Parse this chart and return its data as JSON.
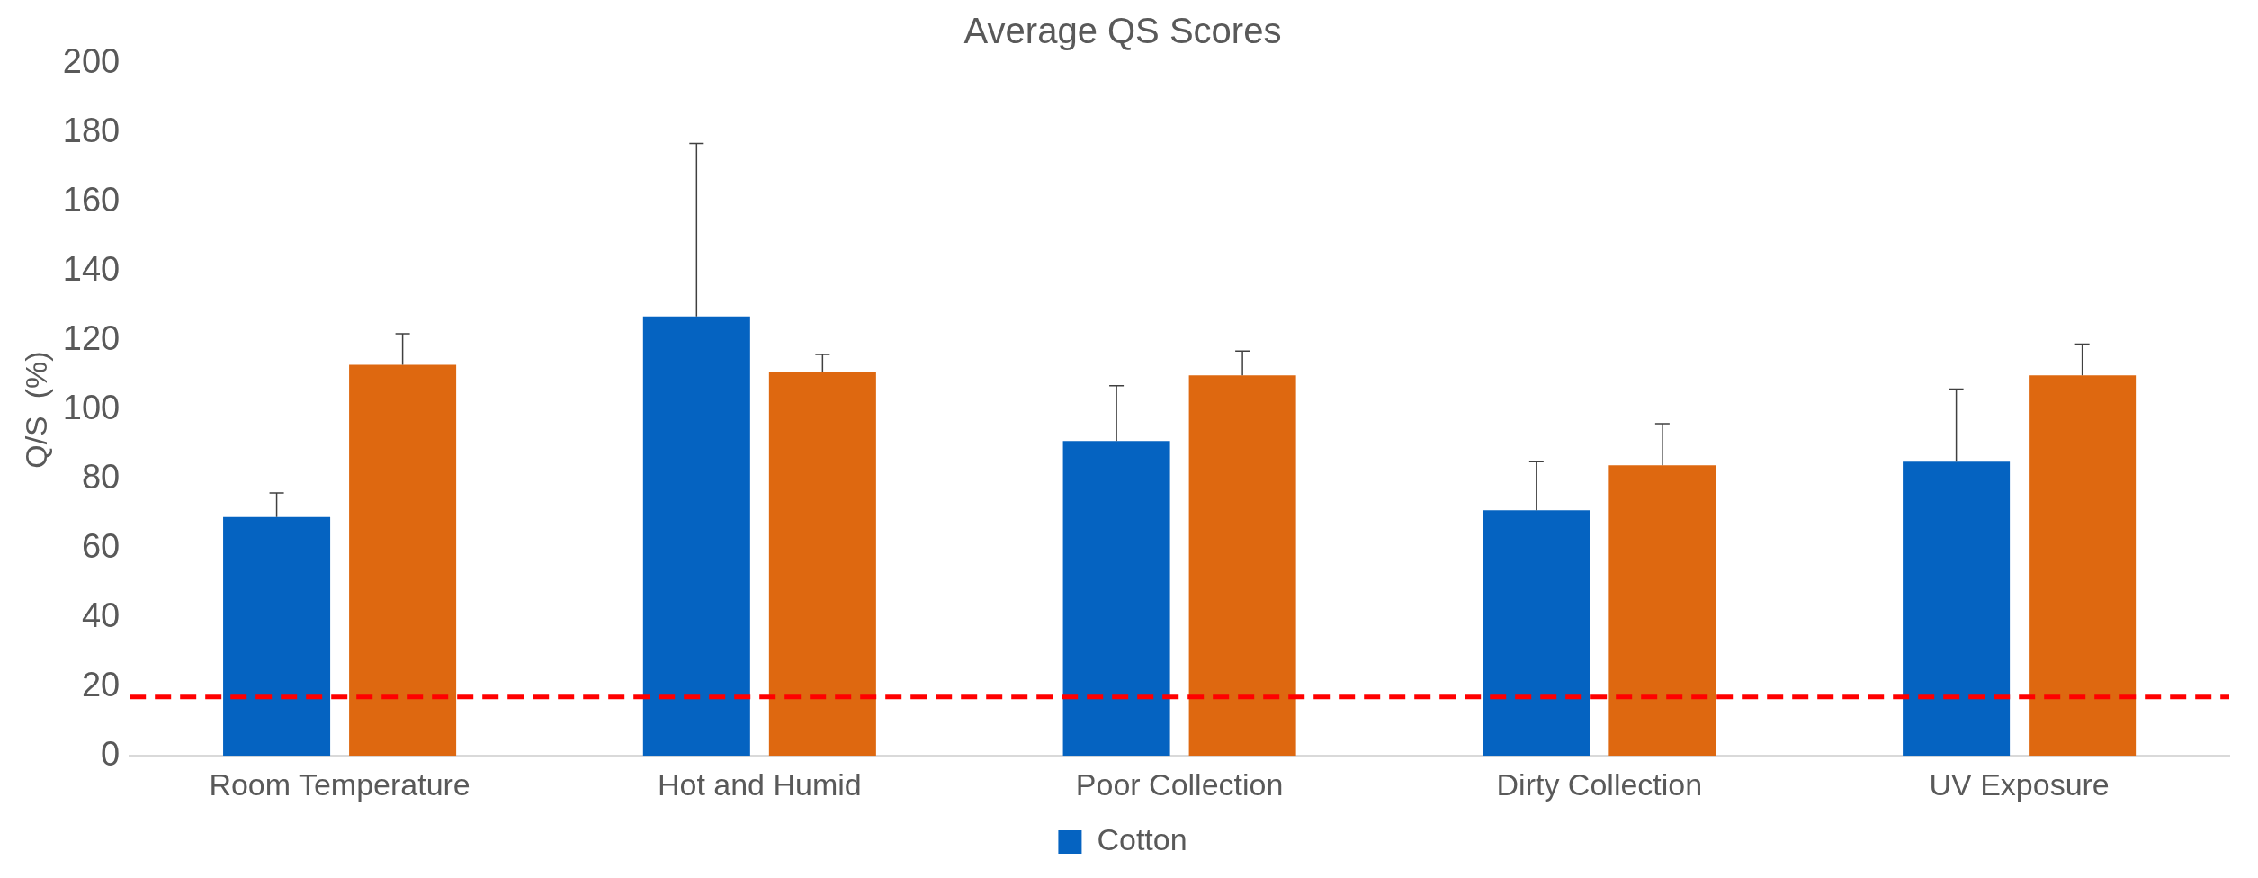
{
  "chart_data": {
    "type": "bar",
    "title": "Average QS Scores",
    "ylabel": "Q/S  (%)",
    "categories": [
      "Room Temperature",
      "Hot and Humid",
      "Poor Collection",
      "Dirty Collection",
      "UV Exposure"
    ],
    "series": [
      {
        "name": "Cotton",
        "color": "#0563c1",
        "values": [
          69,
          127,
          91,
          71,
          85
        ],
        "errors": [
          [
            69,
            76
          ],
          [
            127,
            177
          ],
          [
            91,
            107
          ],
          [
            71,
            85
          ],
          [
            85,
            106
          ]
        ]
      },
      {
        "color": "#de6810",
        "values": [
          113,
          111,
          110,
          84,
          110
        ],
        "errors": [
          [
            113,
            122
          ],
          [
            111,
            116
          ],
          [
            110,
            117
          ],
          [
            84,
            96
          ],
          [
            110,
            119
          ]
        ]
      }
    ],
    "ylim": [
      0,
      200
    ],
    "yticks": [
      0,
      20,
      40,
      60,
      80,
      100,
      120,
      140,
      160,
      180,
      200
    ],
    "grid": false,
    "legend": "bottom",
    "ref_lines": [
      {
        "axis": "y",
        "value": 17,
        "color": "#ff0000",
        "line_style": "dashed"
      }
    ]
  }
}
